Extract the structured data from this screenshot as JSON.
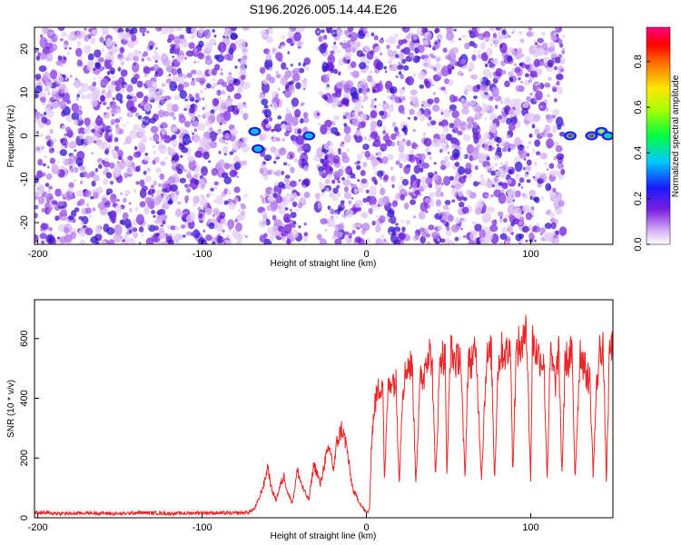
{
  "title": "S196.2026.005.14.44.E26",
  "chart_data": [
    {
      "type": "heatmap",
      "title": "S196.2026.005.14.44.E26",
      "xlabel": "Height of straight line (km)",
      "ylabel": "Frequency (Hz)",
      "xlim": [
        -202,
        150
      ],
      "ylim": [
        -25,
        25
      ],
      "xticks": [
        -200,
        -100,
        0,
        100
      ],
      "xtick_labels": [
        "-200",
        "-100",
        "0",
        "100"
      ],
      "yticks": [
        20,
        10,
        0,
        -10,
        -20
      ],
      "ytick_labels": [
        "20",
        "10",
        "0",
        "-10",
        "-20"
      ],
      "colorbar": {
        "label": "Normalized spectral amplitude",
        "range": [
          0.0,
          0.95
        ],
        "ticks": [
          0.0,
          0.2,
          0.4,
          0.6,
          0.8
        ],
        "tick_labels": [
          "0.0",
          "0.2",
          "0.4",
          "0.6",
          "0.8"
        ],
        "colormap": "rainbow (white-violet-blue-cyan-green-yellow-red-magenta)"
      },
      "gaps_x": [
        [
          -73,
          -64
        ],
        [
          -36,
          -30
        ],
        [
          120,
          150
        ]
      ],
      "hotspots": [
        {
          "x": -68,
          "y": 1,
          "value": 0.45
        },
        {
          "x": -66,
          "y": -3,
          "value": 0.4
        },
        {
          "x": -35,
          "y": 0,
          "value": 0.45
        },
        {
          "x": 124,
          "y": 0,
          "value": 0.95
        },
        {
          "x": 137,
          "y": 0,
          "value": 0.95
        },
        {
          "x": 143,
          "y": 1,
          "value": 0.7
        },
        {
          "x": 147,
          "y": 0,
          "value": 0.6
        }
      ]
    },
    {
      "type": "line",
      "xlabel": "Height of straight line (km)",
      "ylabel": "SNR (10 * v/v)",
      "xlim": [
        -202,
        150
      ],
      "ylim": [
        0,
        730
      ],
      "xticks": [
        -200,
        -100,
        0,
        100
      ],
      "xtick_labels": [
        "-200",
        "-100",
        "0",
        "100"
      ],
      "yticks": [
        0,
        200,
        400,
        600
      ],
      "ytick_labels": [
        "0",
        "200",
        "400",
        "600"
      ],
      "series": [
        {
          "color": "#e8282a",
          "x": [
            -202,
            -190,
            -180,
            -170,
            -160,
            -150,
            -140,
            -130,
            -120,
            -110,
            -100,
            -90,
            -80,
            -72,
            -68,
            -65,
            -62,
            -60,
            -58,
            -55,
            -52,
            -50,
            -48,
            -45,
            -42,
            -40,
            -38,
            -35,
            -32,
            -30,
            -28,
            -25,
            -22,
            -20,
            -18,
            -15,
            -12,
            -10,
            -8,
            -5,
            -3,
            0,
            2,
            3,
            5,
            7,
            8,
            10,
            11,
            13,
            15,
            18,
            20,
            22,
            25,
            28,
            30,
            33,
            35,
            36,
            38,
            40,
            42,
            45,
            48,
            49,
            51,
            53,
            55,
            57,
            60,
            62,
            63,
            65,
            67,
            70,
            73,
            75,
            76,
            78,
            80,
            82,
            85,
            88,
            89,
            91,
            93,
            95,
            97,
            100,
            101,
            103,
            105,
            108,
            110,
            112,
            114,
            115,
            117,
            119,
            121,
            123,
            125,
            127,
            130,
            132,
            134,
            136,
            138,
            140,
            142,
            144,
            146,
            148,
            150
          ],
          "y": [
            18,
            15,
            14,
            16,
            15,
            13,
            17,
            16,
            14,
            15,
            17,
            16,
            15,
            18,
            30,
            70,
            120,
            175,
            100,
            60,
            115,
            140,
            85,
            50,
            160,
            120,
            90,
            60,
            180,
            150,
            110,
            200,
            230,
            160,
            250,
            300,
            240,
            150,
            90,
            60,
            40,
            15,
            30,
            250,
            380,
            420,
            440,
            460,
            110,
            420,
            470,
            450,
            120,
            430,
            520,
            500,
            120,
            480,
            470,
            540,
            560,
            520,
            130,
            550,
            530,
            120,
            560,
            540,
            520,
            560,
            130,
            540,
            510,
            550,
            530,
            130,
            530,
            540,
            560,
            120,
            500,
            560,
            550,
            560,
            130,
            540,
            580,
            550,
            700,
            120,
            600,
            560,
            540,
            520,
            130,
            550,
            480,
            450,
            560,
            140,
            540,
            520,
            560,
            130,
            560,
            520,
            480,
            460,
            140,
            430,
            560,
            580,
            120,
            560,
            570
          ]
        }
      ]
    }
  ]
}
